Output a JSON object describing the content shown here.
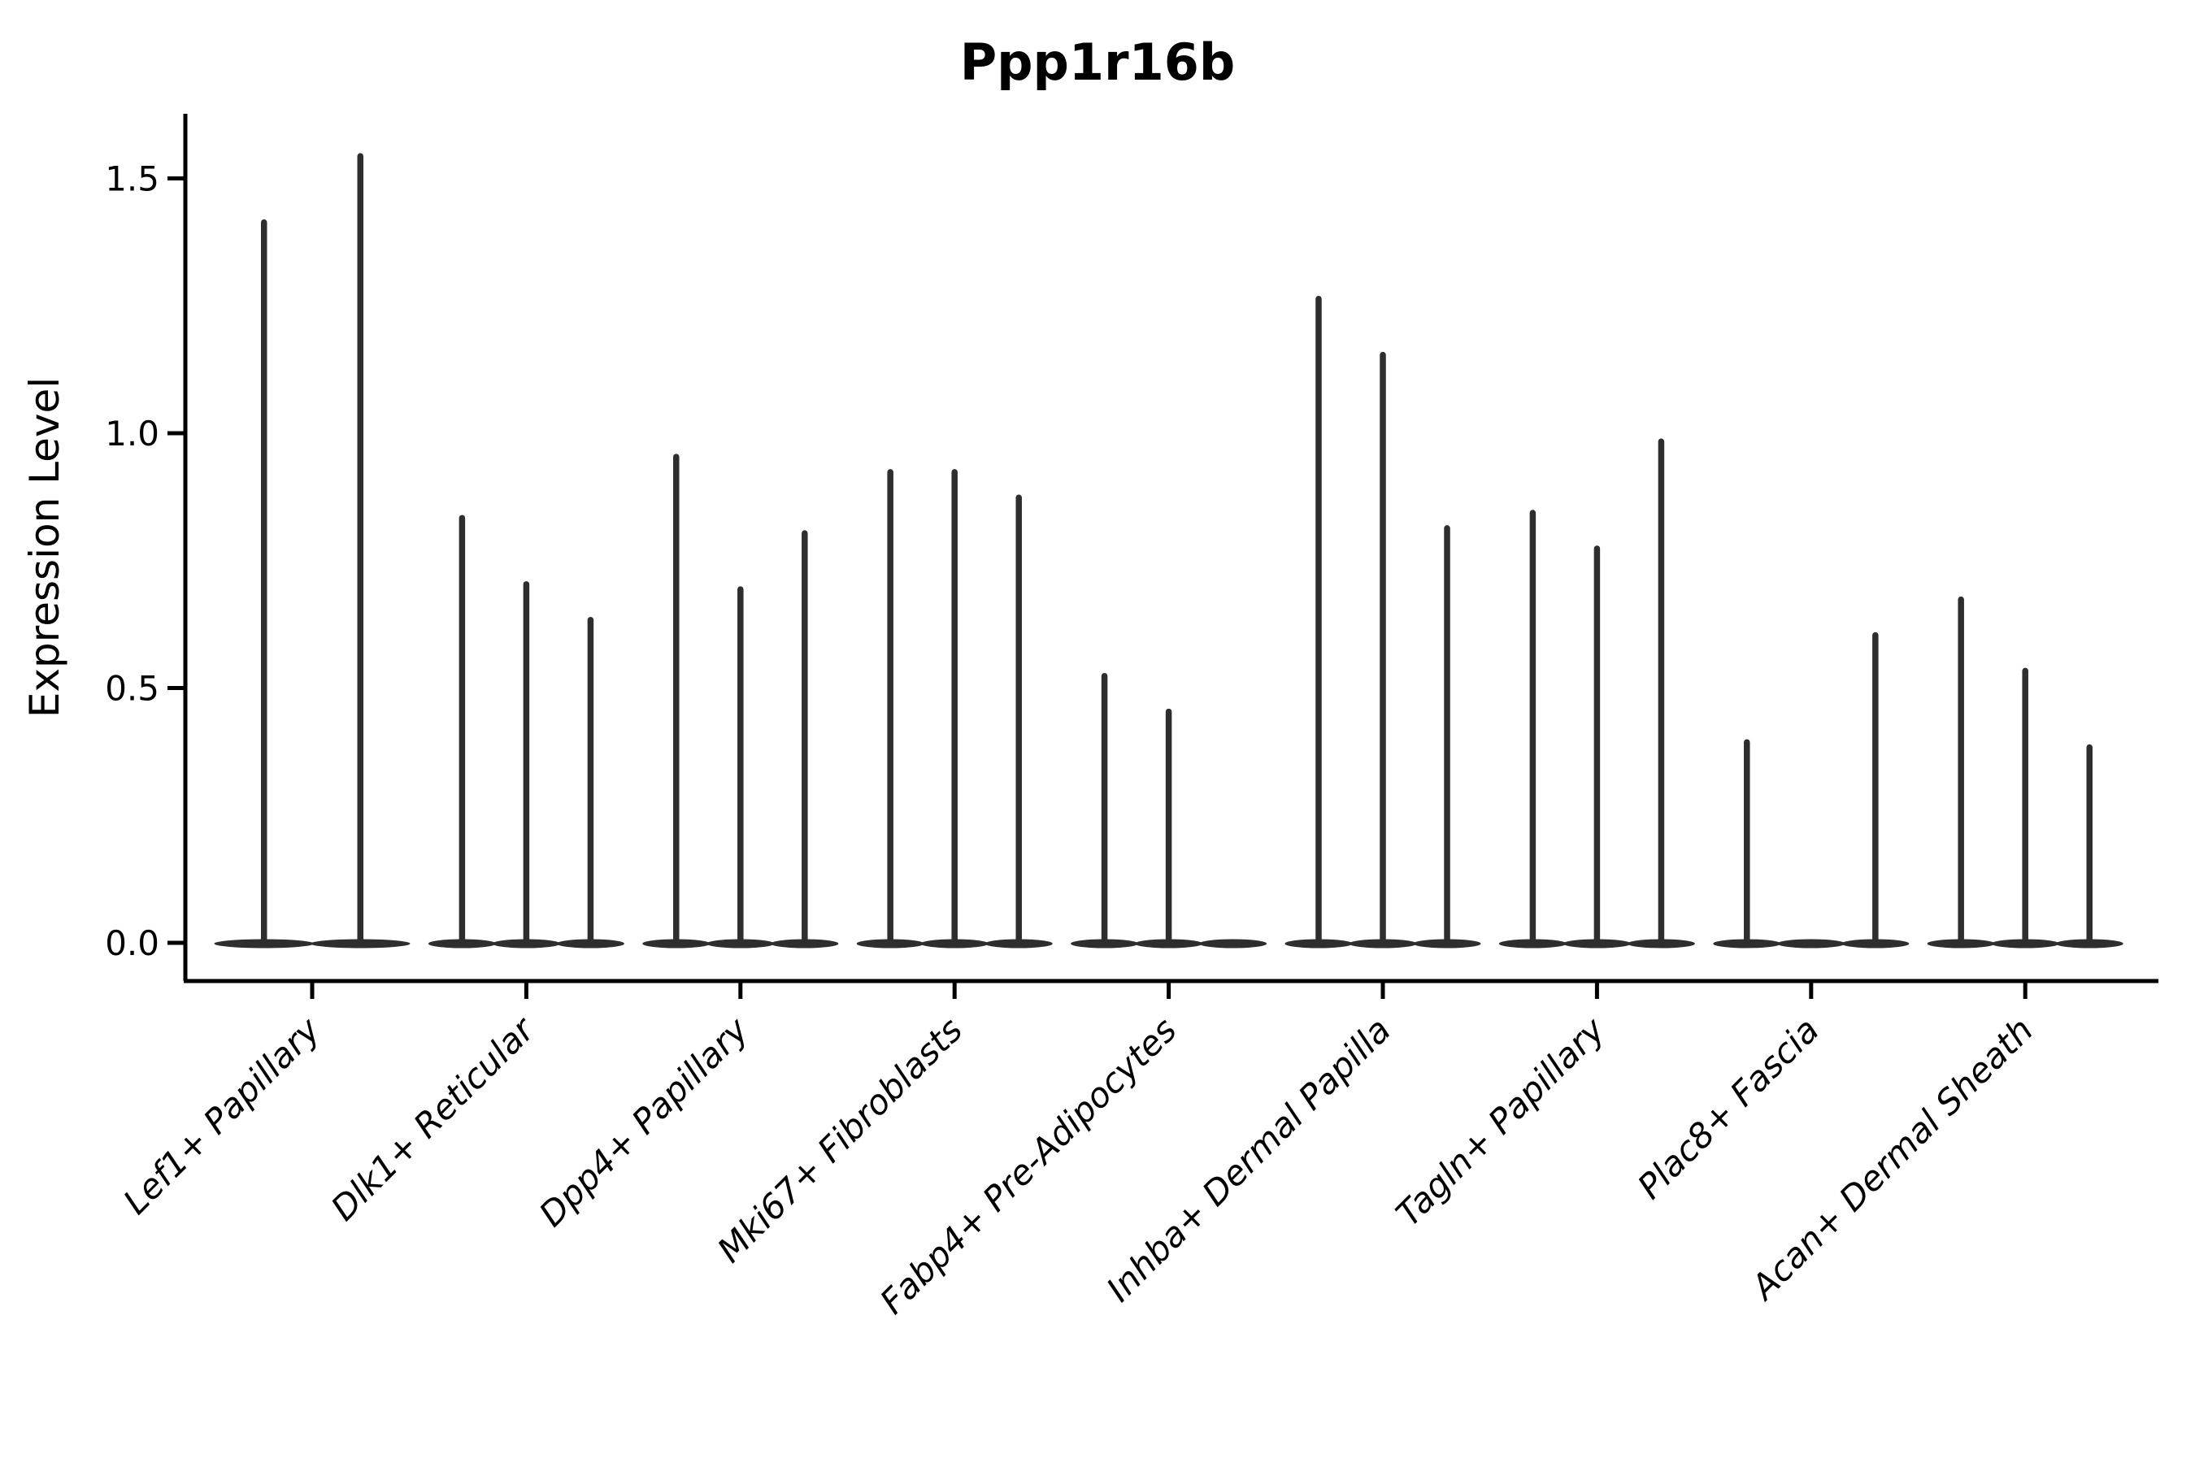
{
  "chart_data": {
    "type": "violin",
    "title": "Ppp1r16b",
    "ylabel": "Expression Level",
    "xlabel": "",
    "grid": false,
    "legend": "none",
    "ylim": [
      -0.07,
      1.63
    ],
    "yticks": [
      {
        "label": "0.0",
        "value": 0.0
      },
      {
        "label": "0.5",
        "value": 0.5
      },
      {
        "label": "1.0",
        "value": 1.0
      },
      {
        "label": "1.5",
        "value": 1.5
      }
    ],
    "categories": [
      "Lef1+ Papillary",
      "Dlk1+ Reticular",
      "Dpp4+ Papillary",
      "Mki67+ Fibroblasts",
      "Fabp4+ Pre-Adipocytes",
      "Inhba+ Dermal Papilla",
      "Tagln+ Papillary",
      "Plac8+ Fascia",
      "Acan+ Dermal Sheath"
    ],
    "groups": [
      {
        "category": "Lef1+ Papillary",
        "violins": [
          {
            "offset": -0.225,
            "width": 0.45,
            "max": 1.42
          },
          {
            "offset": 0.225,
            "width": 0.45,
            "max": 1.55
          }
        ]
      },
      {
        "category": "Dlk1+ Reticular",
        "violins": [
          {
            "offset": -0.3,
            "width": 0.3,
            "max": 0.84
          },
          {
            "offset": 0.0,
            "width": 0.3,
            "max": 0.71
          },
          {
            "offset": 0.3,
            "width": 0.3,
            "max": 0.64
          }
        ]
      },
      {
        "category": "Dpp4+ Papillary",
        "violins": [
          {
            "offset": -0.3,
            "width": 0.3,
            "max": 0.96
          },
          {
            "offset": 0.0,
            "width": 0.3,
            "max": 0.7
          },
          {
            "offset": 0.3,
            "width": 0.3,
            "max": 0.81
          }
        ]
      },
      {
        "category": "Mki67+ Fibroblasts",
        "violins": [
          {
            "offset": -0.3,
            "width": 0.3,
            "max": 0.93
          },
          {
            "offset": 0.0,
            "width": 0.3,
            "max": 0.93
          },
          {
            "offset": 0.3,
            "width": 0.3,
            "max": 0.88
          }
        ]
      },
      {
        "category": "Fabp4+ Pre-Adipocytes",
        "violins": [
          {
            "offset": -0.3,
            "width": 0.3,
            "max": 0.53
          },
          {
            "offset": 0.0,
            "width": 0.3,
            "max": 0.46
          },
          {
            "offset": 0.3,
            "width": 0.3,
            "max": 0.0
          }
        ]
      },
      {
        "category": "Inhba+ Dermal Papilla",
        "violins": [
          {
            "offset": -0.3,
            "width": 0.3,
            "max": 1.27
          },
          {
            "offset": 0.0,
            "width": 0.3,
            "max": 1.16
          },
          {
            "offset": 0.3,
            "width": 0.3,
            "max": 0.82
          }
        ]
      },
      {
        "category": "Tagln+ Papillary",
        "violins": [
          {
            "offset": -0.3,
            "width": 0.3,
            "max": 0.85
          },
          {
            "offset": 0.0,
            "width": 0.3,
            "max": 0.78
          },
          {
            "offset": 0.3,
            "width": 0.3,
            "max": 0.99
          }
        ]
      },
      {
        "category": "Plac8+ Fascia",
        "violins": [
          {
            "offset": -0.3,
            "width": 0.3,
            "max": 0.4
          },
          {
            "offset": 0.0,
            "width": 0.3,
            "max": 0.0
          },
          {
            "offset": 0.3,
            "width": 0.3,
            "max": 0.61
          }
        ]
      },
      {
        "category": "Acan+ Dermal Sheath",
        "violins": [
          {
            "offset": -0.3,
            "width": 0.3,
            "max": 0.68
          },
          {
            "offset": 0.0,
            "width": 0.3,
            "max": 0.54
          },
          {
            "offset": 0.3,
            "width": 0.3,
            "max": 0.39
          }
        ]
      }
    ],
    "colors": {
      "violin_ink": "#2e2e2e",
      "axis_ink": "#000000",
      "background": "#ffffff"
    }
  }
}
